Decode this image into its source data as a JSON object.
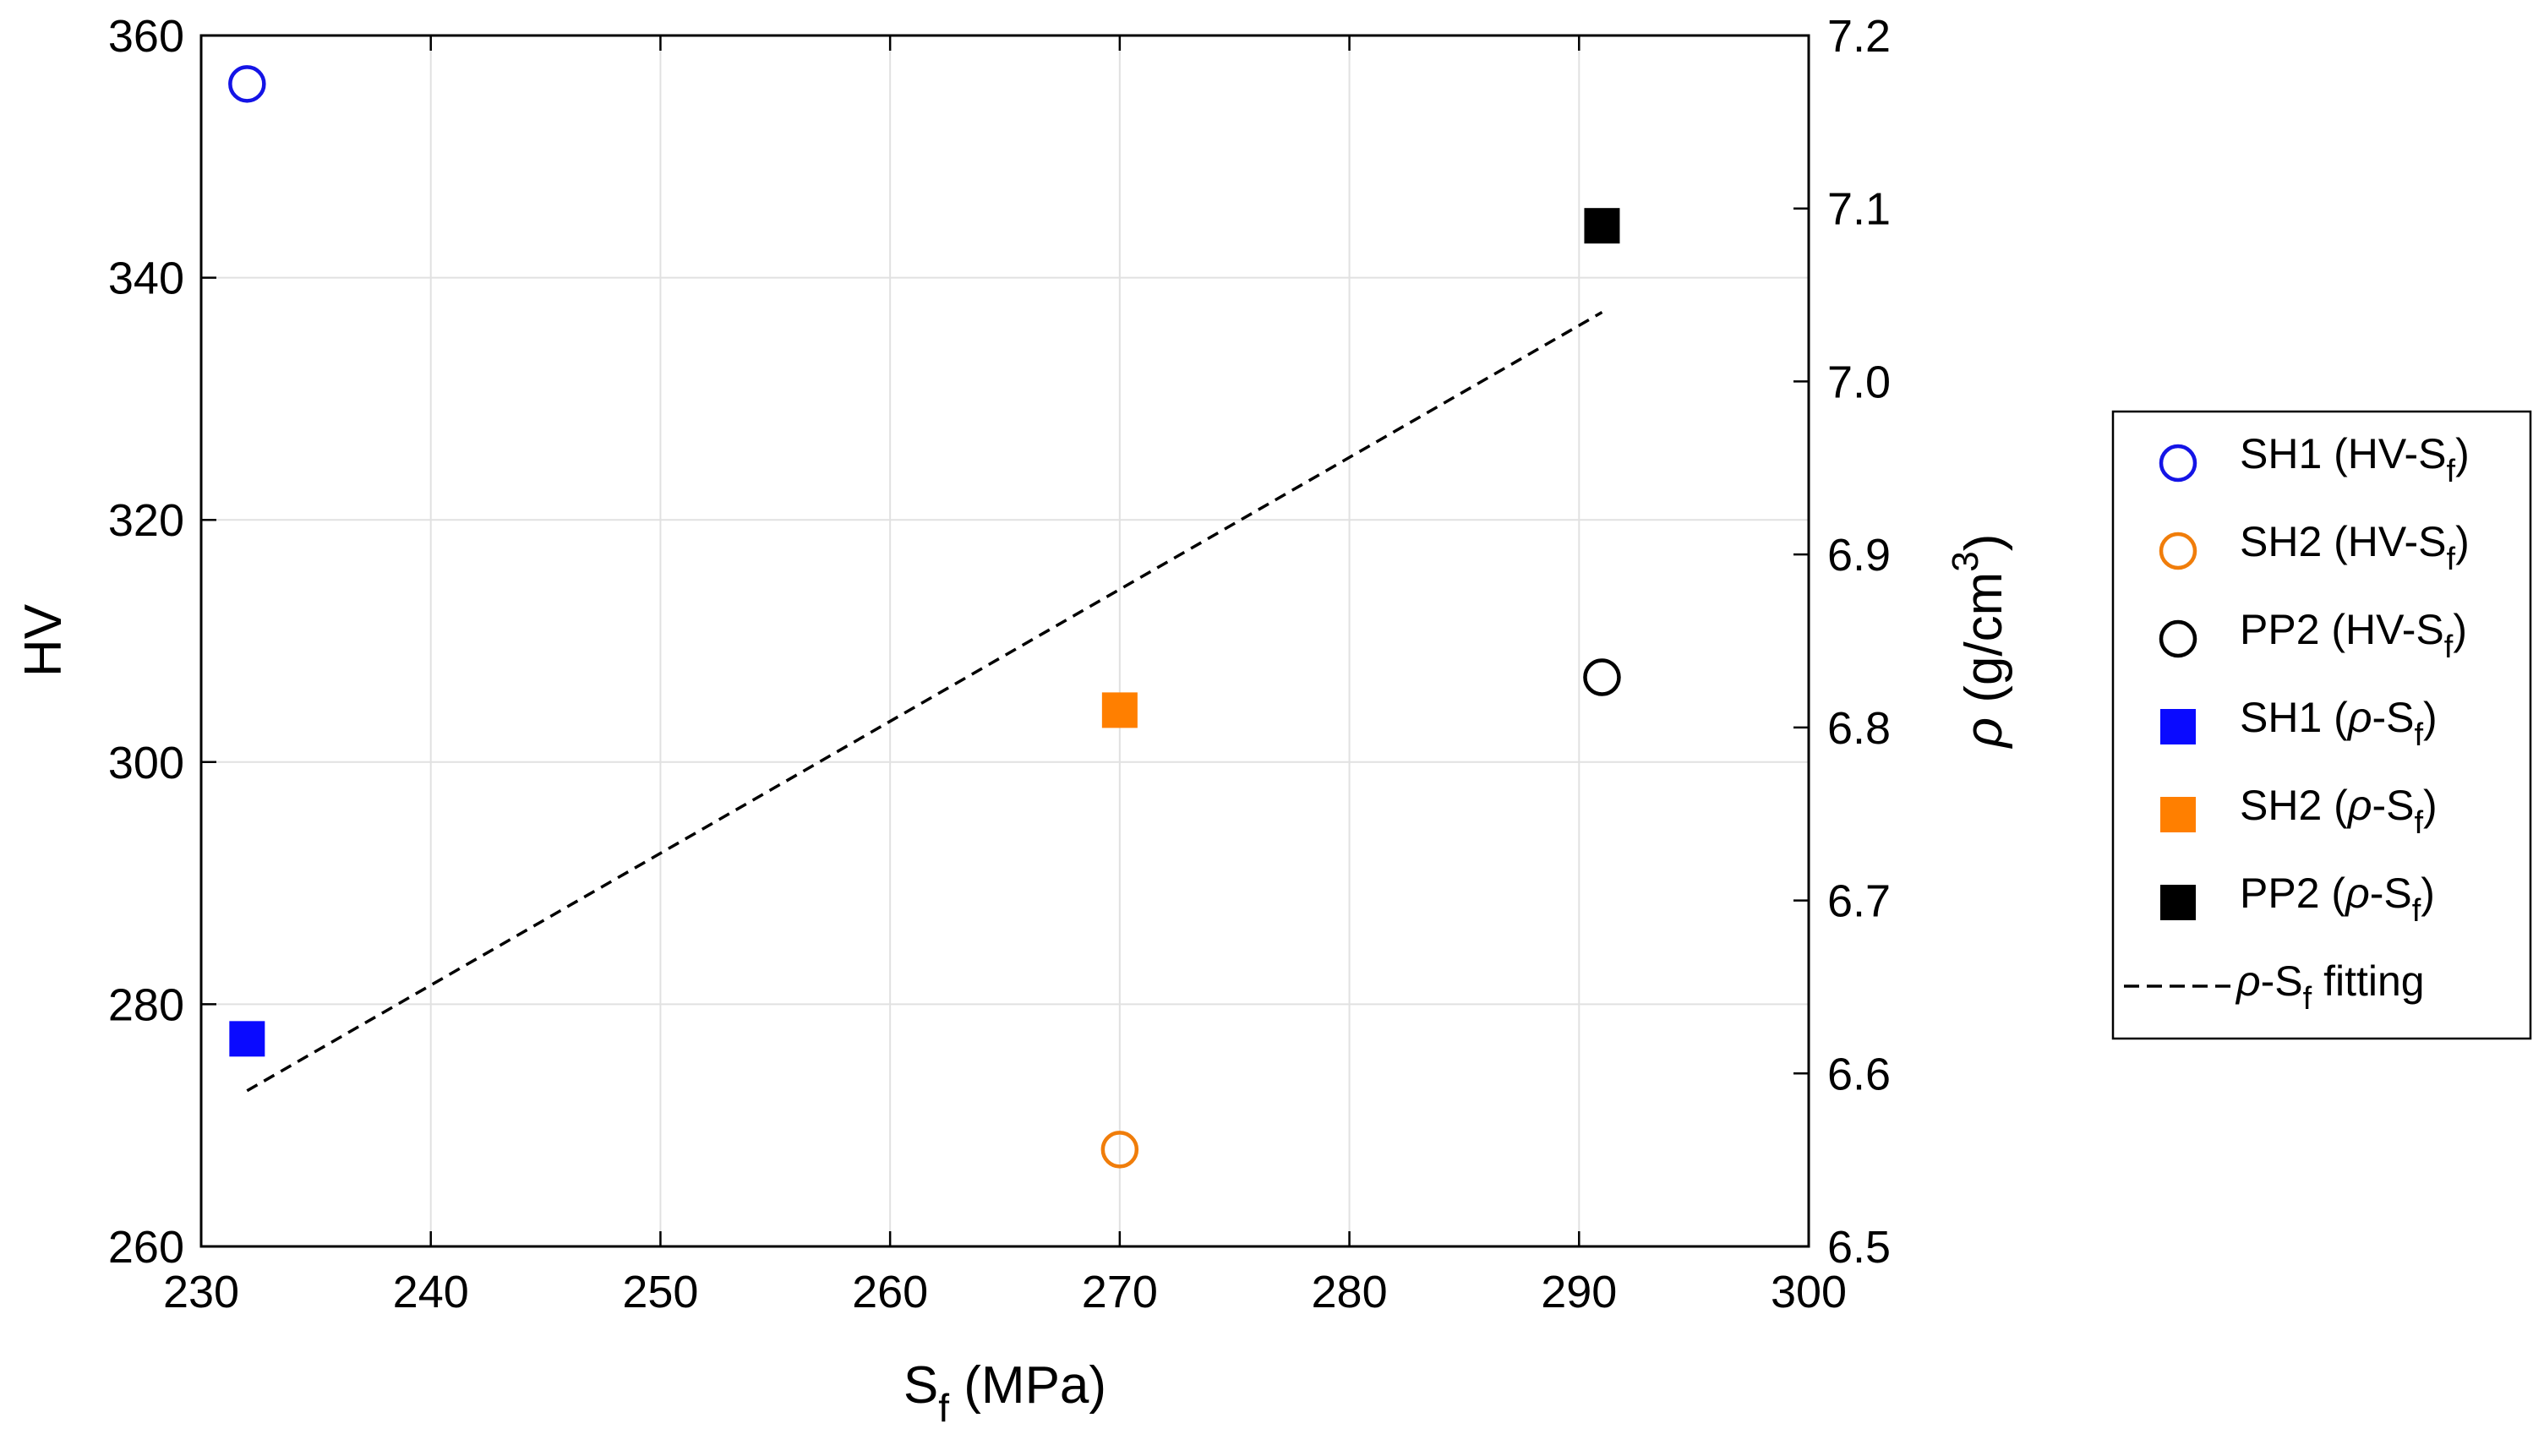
{
  "chart_data": {
    "type": "scatter",
    "title": "",
    "xlabel": {
      "main": "S",
      "sub": "f",
      "unit": " (MPa)"
    },
    "ylabel_left": "HV",
    "ylabel_right": {
      "symbol": "ρ",
      "unit_pre": " (g/cm",
      "sup": "3",
      "unit_post": ")"
    },
    "xlim": [
      230,
      300
    ],
    "ylim_left": [
      260,
      360
    ],
    "ylim_right": [
      6.5,
      7.2
    ],
    "x_ticks": [
      230,
      240,
      250,
      260,
      270,
      280,
      290,
      300
    ],
    "y_left_ticks": [
      260,
      280,
      300,
      320,
      340,
      360
    ],
    "y_right_ticks": [
      "6.5",
      "6.6",
      "6.7",
      "6.8",
      "6.9",
      "7.0",
      "7.1",
      "7.2"
    ],
    "grid": true,
    "legend_position": "outside-right",
    "series": [
      {
        "name": "SH1 (HV-S",
        "sub": "f",
        "close": ")",
        "axis": "left",
        "marker": "circle-open",
        "color": "#1414e6",
        "x": [
          232
        ],
        "y": [
          356
        ]
      },
      {
        "name": "SH2 (HV-S",
        "sub": "f",
        "close": ")",
        "axis": "left",
        "marker": "circle-open",
        "color": "#f07d0a",
        "x": [
          270
        ],
        "y": [
          268
        ]
      },
      {
        "name": "PP2 (HV-S",
        "sub": "f",
        "close": ")",
        "axis": "left",
        "marker": "circle-open",
        "color": "#000000",
        "x": [
          291
        ],
        "y": [
          307
        ]
      },
      {
        "name": "SH1 (ρ-S",
        "sub": "f",
        "close": ")",
        "axis": "right",
        "marker": "square-filled",
        "color": "#0a0aff",
        "x": [
          232
        ],
        "y": [
          6.62
        ]
      },
      {
        "name": "SH2 (ρ-S",
        "sub": "f",
        "close": ")",
        "axis": "right",
        "marker": "square-filled",
        "color": "#ff7f00",
        "x": [
          270
        ],
        "y": [
          6.81
        ]
      },
      {
        "name": "PP2 (ρ-S",
        "sub": "f",
        "close": ")",
        "axis": "right",
        "marker": "square-filled",
        "color": "#000000",
        "x": [
          291
        ],
        "y": [
          7.09
        ]
      }
    ],
    "fit_line": {
      "name": "ρ-S",
      "sub": "f",
      "close": " fitting",
      "axis": "right",
      "style": "dashed",
      "color": "#000000",
      "x": [
        232,
        291
      ],
      "y": [
        6.59,
        7.04
      ]
    }
  }
}
